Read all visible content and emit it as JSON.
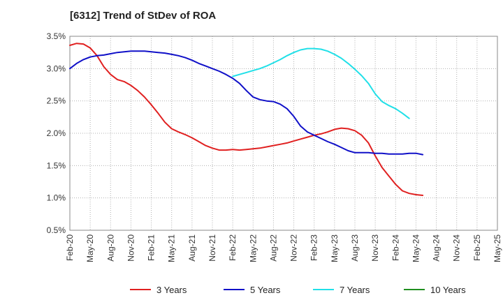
{
  "chart_data": {
    "type": "line",
    "title": "[6312]  Trend of StDev of ROA",
    "xlabel": "",
    "ylabel": "",
    "x_ticks": [
      "Feb-20",
      "May-20",
      "Aug-20",
      "Nov-20",
      "Feb-21",
      "May-21",
      "Aug-21",
      "Nov-21",
      "Feb-22",
      "May-22",
      "Aug-22",
      "Nov-22",
      "Feb-23",
      "May-23",
      "Aug-23",
      "Nov-23",
      "Feb-24",
      "May-24",
      "Aug-24",
      "Nov-24",
      "Feb-25",
      "May-25"
    ],
    "y_ticks": [
      "0.5%",
      "1.0%",
      "1.5%",
      "2.0%",
      "2.5%",
      "3.0%",
      "3.5%"
    ],
    "ylim": [
      0.5,
      3.5
    ],
    "xlim": [
      0,
      63
    ],
    "grid": true,
    "legend_position": "bottom",
    "series": [
      {
        "name": "3 Years",
        "color": "#e02020",
        "points": [
          [
            0,
            3.36
          ],
          [
            1,
            3.39
          ],
          [
            2,
            3.38
          ],
          [
            3,
            3.32
          ],
          [
            4,
            3.2
          ],
          [
            5,
            3.03
          ],
          [
            6,
            2.91
          ],
          [
            7,
            2.83
          ],
          [
            8,
            2.8
          ],
          [
            9,
            2.74
          ],
          [
            10,
            2.66
          ],
          [
            11,
            2.56
          ],
          [
            12,
            2.44
          ],
          [
            13,
            2.31
          ],
          [
            14,
            2.17
          ],
          [
            15,
            2.07
          ],
          [
            16,
            2.02
          ],
          [
            17,
            1.98
          ],
          [
            18,
            1.93
          ],
          [
            19,
            1.87
          ],
          [
            20,
            1.81
          ],
          [
            21,
            1.77
          ],
          [
            22,
            1.74
          ],
          [
            23,
            1.74
          ],
          [
            24,
            1.75
          ],
          [
            25,
            1.74
          ],
          [
            26,
            1.75
          ],
          [
            27,
            1.76
          ],
          [
            28,
            1.77
          ],
          [
            29,
            1.79
          ],
          [
            30,
            1.81
          ],
          [
            31,
            1.83
          ],
          [
            32,
            1.85
          ],
          [
            33,
            1.88
          ],
          [
            34,
            1.91
          ],
          [
            35,
            1.94
          ],
          [
            36,
            1.97
          ],
          [
            37,
            1.99
          ],
          [
            38,
            2.02
          ],
          [
            39,
            2.06
          ],
          [
            40,
            2.08
          ],
          [
            41,
            2.07
          ],
          [
            42,
            2.04
          ],
          [
            43,
            1.97
          ],
          [
            44,
            1.85
          ],
          [
            45,
            1.65
          ],
          [
            46,
            1.47
          ],
          [
            47,
            1.34
          ],
          [
            48,
            1.21
          ],
          [
            49,
            1.11
          ],
          [
            50,
            1.07
          ],
          [
            51,
            1.05
          ],
          [
            52,
            1.04
          ]
        ]
      },
      {
        "name": "5 Years",
        "color": "#1010c8",
        "points": [
          [
            0,
            3.0
          ],
          [
            1,
            3.08
          ],
          [
            2,
            3.14
          ],
          [
            3,
            3.18
          ],
          [
            4,
            3.2
          ],
          [
            5,
            3.21
          ],
          [
            6,
            3.23
          ],
          [
            7,
            3.25
          ],
          [
            8,
            3.26
          ],
          [
            9,
            3.27
          ],
          [
            10,
            3.27
          ],
          [
            11,
            3.27
          ],
          [
            12,
            3.26
          ],
          [
            13,
            3.25
          ],
          [
            14,
            3.24
          ],
          [
            15,
            3.22
          ],
          [
            16,
            3.2
          ],
          [
            17,
            3.17
          ],
          [
            18,
            3.13
          ],
          [
            19,
            3.08
          ],
          [
            20,
            3.04
          ],
          [
            21,
            3.0
          ],
          [
            22,
            2.96
          ],
          [
            23,
            2.91
          ],
          [
            24,
            2.85
          ],
          [
            25,
            2.77
          ],
          [
            26,
            2.66
          ],
          [
            27,
            2.56
          ],
          [
            28,
            2.52
          ],
          [
            29,
            2.5
          ],
          [
            30,
            2.49
          ],
          [
            31,
            2.45
          ],
          [
            32,
            2.38
          ],
          [
            33,
            2.26
          ],
          [
            34,
            2.11
          ],
          [
            35,
            2.02
          ],
          [
            36,
            1.97
          ],
          [
            37,
            1.92
          ],
          [
            38,
            1.87
          ],
          [
            39,
            1.83
          ],
          [
            40,
            1.78
          ],
          [
            41,
            1.73
          ],
          [
            42,
            1.7
          ],
          [
            43,
            1.7
          ],
          [
            44,
            1.7
          ],
          [
            45,
            1.69
          ],
          [
            46,
            1.69
          ],
          [
            47,
            1.68
          ],
          [
            48,
            1.68
          ],
          [
            49,
            1.68
          ],
          [
            50,
            1.69
          ],
          [
            51,
            1.69
          ],
          [
            52,
            1.67
          ]
        ]
      },
      {
        "name": "7 Years",
        "color": "#20e0e8",
        "points": [
          [
            24,
            2.88
          ],
          [
            25,
            2.91
          ],
          [
            26,
            2.94
          ],
          [
            27,
            2.97
          ],
          [
            28,
            3.0
          ],
          [
            29,
            3.04
          ],
          [
            30,
            3.09
          ],
          [
            31,
            3.14
          ],
          [
            32,
            3.2
          ],
          [
            33,
            3.25
          ],
          [
            34,
            3.29
          ],
          [
            35,
            3.31
          ],
          [
            36,
            3.31
          ],
          [
            37,
            3.3
          ],
          [
            38,
            3.27
          ],
          [
            39,
            3.22
          ],
          [
            40,
            3.16
          ],
          [
            41,
            3.08
          ],
          [
            42,
            2.99
          ],
          [
            43,
            2.89
          ],
          [
            44,
            2.77
          ],
          [
            45,
            2.61
          ],
          [
            46,
            2.49
          ],
          [
            47,
            2.43
          ],
          [
            48,
            2.38
          ],
          [
            49,
            2.31
          ],
          [
            50,
            2.23
          ]
        ]
      },
      {
        "name": "10 Years",
        "color": "#1f8f1f",
        "points": []
      }
    ]
  }
}
